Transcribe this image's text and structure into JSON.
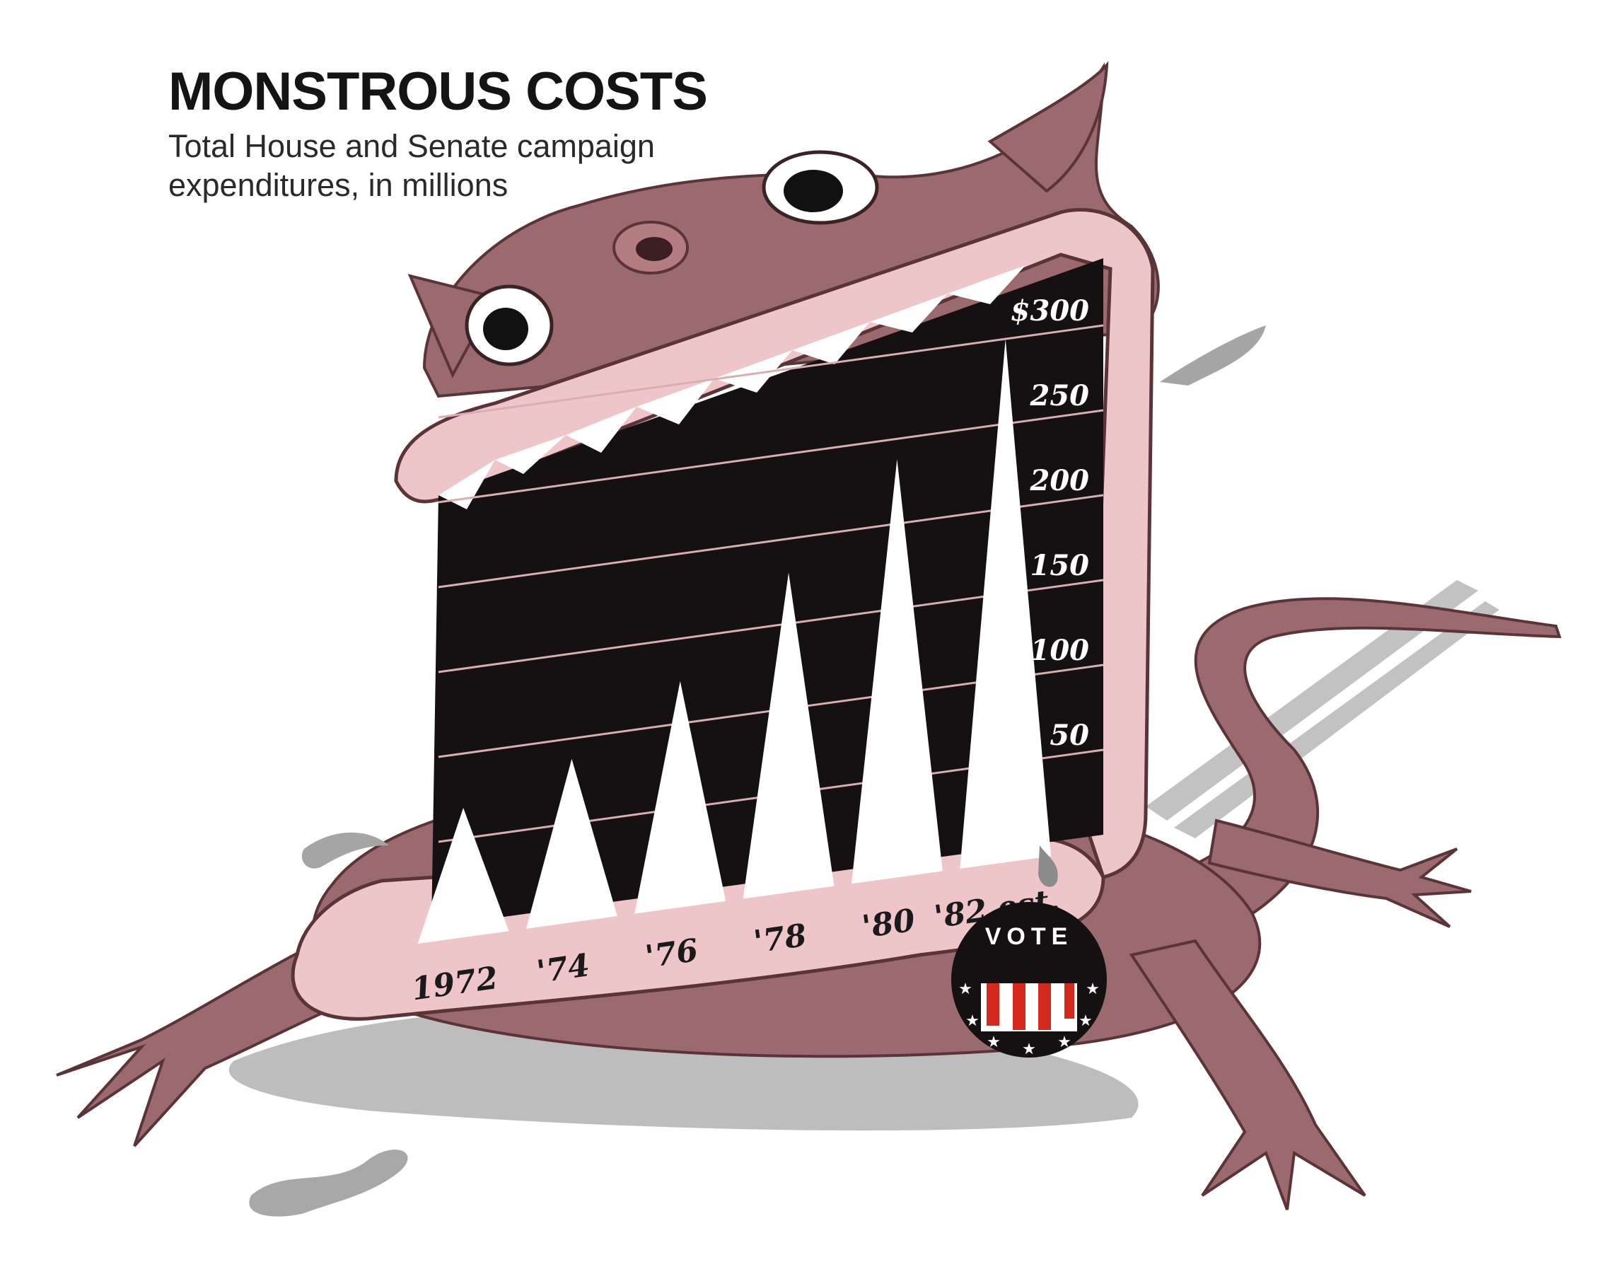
{
  "header": {
    "title": "MONSTROUS COSTS",
    "subtitle": "Total House and Senate campaign expenditures, in millions"
  },
  "badge": {
    "label": "VOTE"
  },
  "colors": {
    "monster_body": "#9b6a6e",
    "monster_dark": "#5a3438",
    "lip_pink": "#eec6ca",
    "mouth_black": "#151012",
    "teeth_white": "#ffffff",
    "shadow_grey": "#b9b9b9",
    "stripe_red": "#d42a1e"
  },
  "chart_data": {
    "type": "area",
    "title": "MONSTROUS COSTS",
    "subtitle": "Total House and Senate campaign expenditures, in millions",
    "xlabel": "",
    "ylabel": "",
    "categories": [
      "1972",
      "'74",
      "'76",
      "'78",
      "'80",
      "'82 est."
    ],
    "values": [
      68,
      88,
      125,
      180,
      238,
      300
    ],
    "ylim": [
      0,
      300
    ],
    "ytick_labels": [
      "$300",
      "250",
      "200",
      "150",
      "100",
      "50"
    ],
    "ytick_values": [
      300,
      250,
      200,
      150,
      100,
      50
    ],
    "grid": true,
    "mark_style": "triangular teeth"
  }
}
